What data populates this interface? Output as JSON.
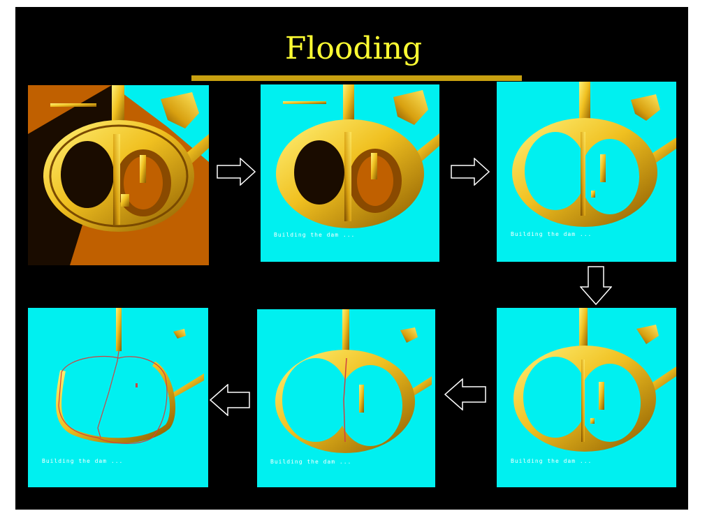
{
  "slide": {
    "title": "Flooding",
    "colors": {
      "background": "#000000",
      "title": "#ffff33",
      "underline": "#c8a010",
      "water": "#00f0f0",
      "terrain": "#c06000",
      "relief": "#f0c020",
      "dam_line": "#d04040"
    },
    "panels": [
      {
        "step": 1,
        "caption": ""
      },
      {
        "step": 2,
        "caption": "Building the dam ..."
      },
      {
        "step": 3,
        "caption": "Building the dam ..."
      },
      {
        "step": 4,
        "caption": "Building the dam ..."
      },
      {
        "step": 5,
        "caption": "Building the dam ..."
      },
      {
        "step": 6,
        "caption": "Building the dam ..."
      }
    ],
    "arrows": [
      {
        "icon": "arrow-right-icon"
      },
      {
        "icon": "arrow-right-icon"
      },
      {
        "icon": "arrow-down-icon"
      },
      {
        "icon": "arrow-left-icon"
      },
      {
        "icon": "arrow-left-icon"
      }
    ]
  }
}
